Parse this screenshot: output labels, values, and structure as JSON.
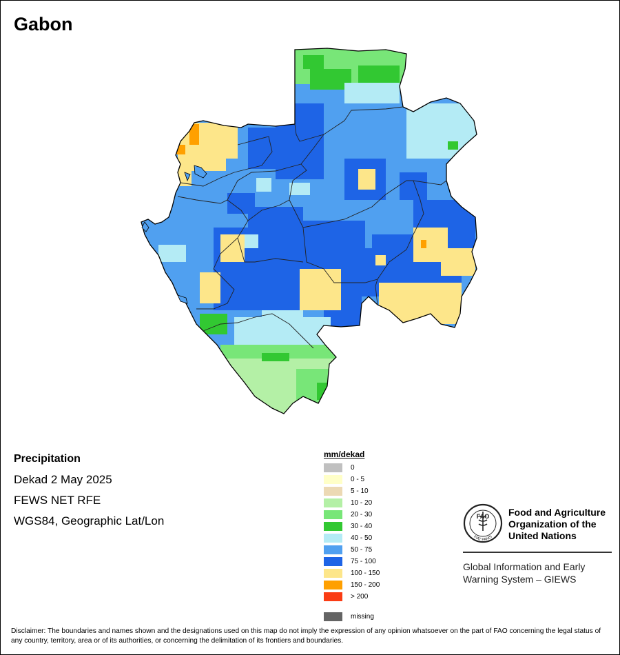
{
  "title": "Gabon",
  "info": {
    "variable": "Precipitation",
    "period": "Dekad 2 May 2025",
    "source": "FEWS NET RFE",
    "projection": "WGS84, Geographic Lat/Lon"
  },
  "legend": {
    "unit": "mm/dekad",
    "classes": [
      {
        "label": "0",
        "color": "#c0c0c0"
      },
      {
        "label": "0 - 5",
        "color": "#ffffc8"
      },
      {
        "label": "5 - 10",
        "color": "#ecd9b4"
      },
      {
        "label": "10 - 20",
        "color": "#b4f0a6"
      },
      {
        "label": "20 - 30",
        "color": "#78e678"
      },
      {
        "label": "30 - 40",
        "color": "#32c832"
      },
      {
        "label": "40 - 50",
        "color": "#b4ebf5"
      },
      {
        "label": "50 - 75",
        "color": "#50a0f0"
      },
      {
        "label": "75 - 100",
        "color": "#1e64e6"
      },
      {
        "label": "100 - 150",
        "color": "#fde68a"
      },
      {
        "label": "150 - 200",
        "color": "#ffa000"
      },
      {
        "label": "> 200",
        "color": "#fa3c14"
      }
    ],
    "missing": {
      "label": "missing",
      "color": "#646464"
    }
  },
  "fao": {
    "line1": "Food and Agriculture",
    "line2": "Organization of the",
    "line3": "United Nations",
    "logo_text": "FAO",
    "logo_motto": "FIAT PANIS",
    "giews1": "Global Information and Early",
    "giews2": "Warning System – GIEWS"
  },
  "disclaimer": "Disclaimer: The boundaries and names shown and the designations used on this map do not imply the expression of any opinion whatsoever on the part of FAO concerning the legal status of any country, territory, area or of its authorities, or concerning the delimitation of its frontiers and boundaries."
}
